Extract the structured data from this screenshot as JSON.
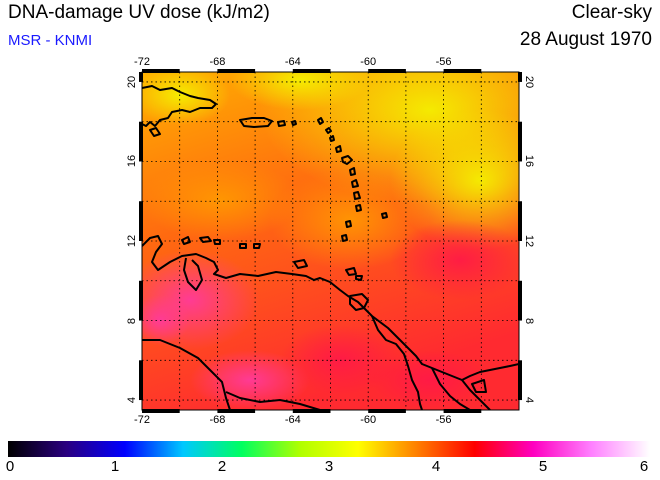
{
  "header": {
    "title": "DNA-damage UV dose (kJ/m2)",
    "source": "MSR - KNMI",
    "condition": "Clear-sky",
    "date": "28 August 1970"
  },
  "colors": {
    "source_text": "#1a1aff",
    "field_low": "#ffea00",
    "field_mid": "#ff6a1a",
    "field_high": "#ff1a4d",
    "coast": "#000000"
  },
  "map": {
    "lon_range": [
      -72,
      -52
    ],
    "lat_range": [
      3.5,
      20.5
    ],
    "lon_ticks": [
      "-72",
      "-68",
      "-64",
      "-60",
      "-56"
    ],
    "lat_ticks": [
      "4",
      "8",
      "12",
      "16",
      "20"
    ],
    "grid": "dotted, 2-degree spacing"
  },
  "colorbar": {
    "min": 0,
    "max": 6,
    "labels": [
      "0",
      "1",
      "2",
      "3",
      "4",
      "5",
      "6"
    ],
    "gradient": [
      "#000000",
      "#2a0080",
      "#0000ff",
      "#00c8ff",
      "#00ff60",
      "#b0ff00",
      "#ffff00",
      "#ff8000",
      "#ff0000",
      "#ff00c0",
      "#ff80ff",
      "#ffffff"
    ]
  }
}
